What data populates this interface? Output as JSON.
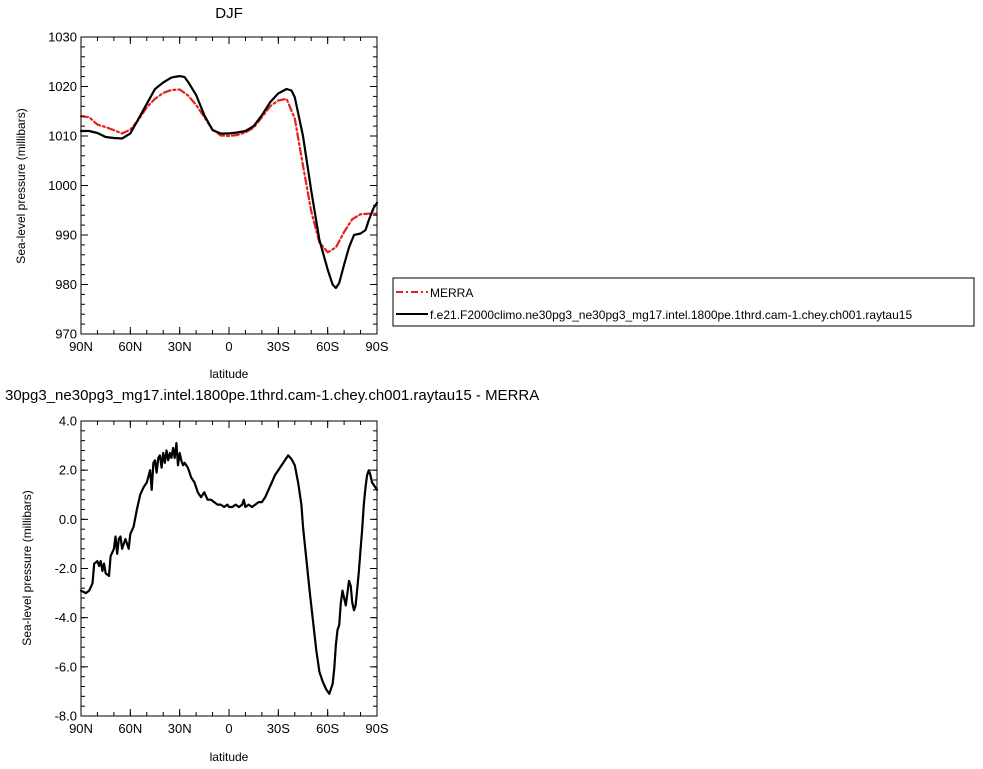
{
  "chart_data": [
    {
      "type": "line",
      "title": "DJF",
      "xlabel": "latitude",
      "ylabel": "Sea-level pressure (millibars)",
      "xlim": [
        90,
        -90
      ],
      "ylim": [
        970,
        1030
      ],
      "x_tick_values": [
        90,
        60,
        30,
        0,
        -30,
        -60,
        -90
      ],
      "x_tick_labels": [
        "90N",
        "60N",
        "30N",
        "0",
        "30S",
        "60S",
        "90S"
      ],
      "y_tick_values": [
        970,
        980,
        990,
        1000,
        1010,
        1020,
        1030
      ],
      "y_tick_labels": [
        "970",
        "980",
        "990",
        "1000",
        "1010",
        "1020",
        "1030"
      ],
      "legend_position": "right",
      "series": [
        {
          "name": "MERRA",
          "color": "#e8201c",
          "dash": "dashed",
          "x": [
            90,
            85,
            80,
            75,
            70,
            65,
            60,
            55,
            50,
            45,
            40,
            35,
            30,
            25,
            20,
            15,
            10,
            5,
            0,
            -5,
            -10,
            -15,
            -20,
            -25,
            -30,
            -35,
            -40,
            -45,
            -50,
            -55,
            -60,
            -65,
            -70,
            -75,
            -80,
            -85,
            -90
          ],
          "y": [
            1014,
            1013.8,
            1012.3,
            1011.8,
            1011.2,
            1010.5,
            1011.3,
            1013.3,
            1015.8,
            1017.5,
            1018.7,
            1019.3,
            1019.4,
            1018.2,
            1016.3,
            1013.8,
            1011.3,
            1010.1,
            1010,
            1010.2,
            1010.7,
            1011.7,
            1013.8,
            1016,
            1017.2,
            1017.5,
            1013.5,
            1004,
            994.8,
            988.5,
            986.5,
            987.5,
            990.6,
            993.2,
            994.2,
            994.3,
            994.3
          ]
        },
        {
          "name": "f.e21.F2000climo.ne30pg3_ne30pg3_mg17.intel.1800pe.1thrd.cam-1.chey.ch001.raytau15",
          "color": "#000000",
          "dash": "solid",
          "x": [
            90,
            85,
            80,
            75,
            70,
            65,
            60,
            55,
            50,
            45,
            40,
            35,
            32,
            30,
            27,
            25,
            20,
            15,
            10,
            5,
            0,
            -5,
            -10,
            -15,
            -20,
            -25,
            -30,
            -35,
            -38,
            -40,
            -45,
            -50,
            -55,
            -60,
            -63,
            -65,
            -67,
            -70,
            -73,
            -76,
            -80,
            -83,
            -85,
            -88,
            -90
          ],
          "y": [
            1011,
            1011,
            1010.6,
            1009.8,
            1009.6,
            1009.5,
            1010.5,
            1013.5,
            1016.5,
            1019.5,
            1020.8,
            1021.8,
            1022,
            1022.1,
            1021.9,
            1021,
            1018.3,
            1014.2,
            1011.2,
            1010.5,
            1010.5,
            1010.7,
            1011,
            1012,
            1014.2,
            1016.8,
            1018.6,
            1019.5,
            1019.2,
            1017.8,
            1010,
            999,
            989,
            983,
            980,
            979.3,
            980.3,
            984,
            987.5,
            990,
            990.3,
            991,
            993,
            995.5,
            996.5
          ]
        }
      ]
    },
    {
      "type": "line",
      "title": "30pg3_ne30pg3_mg17.intel.1800pe.1thrd.cam-1.chey.ch001.raytau15 - MERRA",
      "xlabel": "latitude",
      "ylabel": "Sea-level pressure (millibars)",
      "xlim": [
        90,
        -90
      ],
      "ylim": [
        -8,
        4
      ],
      "x_tick_values": [
        90,
        60,
        30,
        0,
        -30,
        -60,
        -90
      ],
      "x_tick_labels": [
        "90N",
        "60N",
        "30N",
        "0",
        "30S",
        "60S",
        "90S"
      ],
      "y_tick_values": [
        -8,
        -6,
        -4,
        -2,
        0,
        2,
        4
      ],
      "y_tick_labels": [
        "-8.0",
        "-6.0",
        "-4.0",
        "-2.0",
        "0.0",
        "2.0",
        "4.0"
      ],
      "series": [
        {
          "color": "#000000",
          "dash": "solid",
          "x": [
            90,
            87,
            85,
            83,
            82,
            80,
            79,
            78,
            77,
            76,
            75,
            73,
            72,
            70,
            69,
            68,
            67,
            66,
            65,
            63,
            61,
            60,
            58,
            56,
            54,
            52,
            50,
            48,
            47,
            46,
            45,
            44,
            43,
            42,
            41,
            40,
            39,
            38,
            37,
            36,
            35,
            34,
            33,
            32,
            31,
            30,
            29,
            28,
            27,
            25,
            23,
            21,
            19,
            17,
            15,
            13,
            11,
            9,
            7,
            5,
            3,
            1,
            0,
            -2,
            -4,
            -6,
            -8,
            -9,
            -10,
            -12,
            -14,
            -16,
            -18,
            -20,
            -22,
            -24,
            -26,
            -28,
            -30,
            -32,
            -34,
            -36,
            -38,
            -40,
            -42,
            -44,
            -45,
            -47,
            -49,
            -51,
            -53,
            -55,
            -57,
            -59,
            -61,
            -63,
            -64,
            -65,
            -66,
            -67,
            -68,
            -69,
            -70,
            -71,
            -72,
            -73,
            -74,
            -75,
            -76,
            -77,
            -78,
            -79,
            -80,
            -81,
            -82,
            -83,
            -84,
            -85,
            -86,
            -87,
            -88,
            -89,
            -90
          ],
          "y": [
            -2.9,
            -3,
            -2.9,
            -2.6,
            -1.8,
            -1.7,
            -1.9,
            -1.7,
            -2.1,
            -1.8,
            -2.2,
            -2.3,
            -1.5,
            -1.2,
            -0.7,
            -1.4,
            -0.8,
            -0.7,
            -1.2,
            -0.8,
            -1.2,
            -0.6,
            -0.3,
            0.4,
            1,
            1.3,
            1.5,
            2,
            1.2,
            2.3,
            2.4,
            1.9,
            2.5,
            2.6,
            2.1,
            2.7,
            2.3,
            2.8,
            2.4,
            2.7,
            2.5,
            2.9,
            2.5,
            3.1,
            2.2,
            2.7,
            2.4,
            2.2,
            2.3,
            2.1,
            1.7,
            1.5,
            1.1,
            0.9,
            1.1,
            0.8,
            0.8,
            0.7,
            0.6,
            0.6,
            0.5,
            0.6,
            0.5,
            0.5,
            0.6,
            0.5,
            0.6,
            0.8,
            0.5,
            0.6,
            0.5,
            0.6,
            0.7,
            0.7,
            0.9,
            1.2,
            1.5,
            1.8,
            2,
            2.2,
            2.4,
            2.6,
            2.45,
            2.2,
            1.5,
            0.6,
            -0.3,
            -1.6,
            -2.9,
            -4.1,
            -5.3,
            -6.2,
            -6.6,
            -6.9,
            -7.1,
            -6.7,
            -6.1,
            -5.1,
            -4.5,
            -4.3,
            -3.4,
            -2.9,
            -3.2,
            -3.5,
            -3,
            -2.5,
            -2.7,
            -3.4,
            -3.7,
            -3.5,
            -2.8,
            -2.1,
            -1.2,
            -0.4,
            0.6,
            1.3,
            1.8,
            2,
            1.8,
            1.5,
            1.4,
            1.3,
            1.2
          ]
        }
      ]
    }
  ]
}
